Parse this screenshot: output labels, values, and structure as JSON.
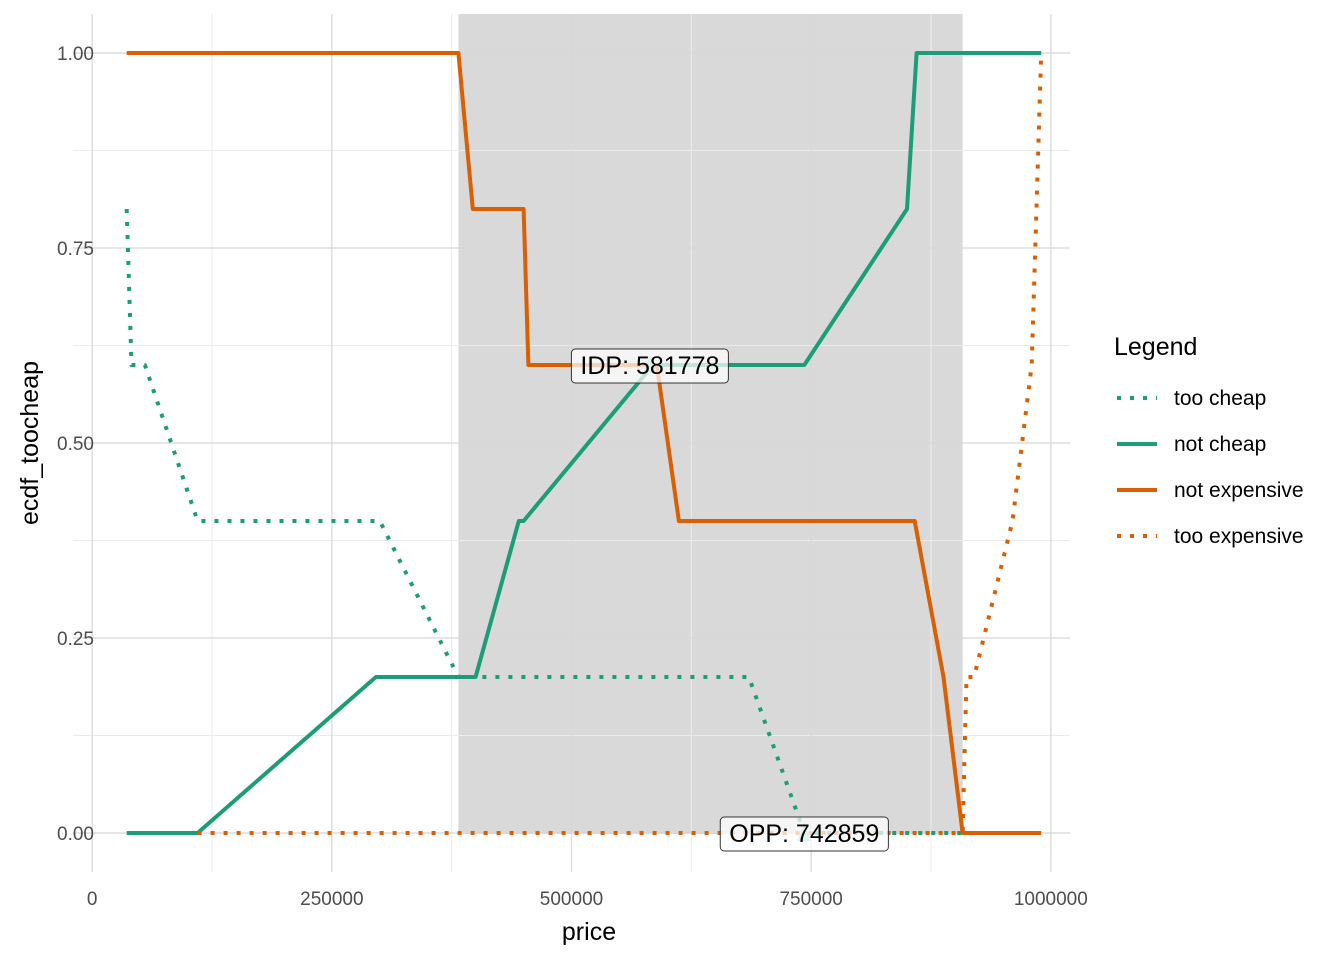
{
  "chart_data": {
    "type": "line",
    "title": "",
    "xlabel": "price",
    "ylabel": "ecdf_toocheap",
    "xlim": [
      -20000,
      1020000
    ],
    "ylim": [
      -0.05,
      1.05
    ],
    "x_ticks": [
      0,
      250000,
      500000,
      750000,
      1000000
    ],
    "x_tick_labels": [
      "0",
      "250000",
      "500000",
      "750000",
      "1000000"
    ],
    "y_ticks": [
      0,
      0.25,
      0.5,
      0.75,
      1.0
    ],
    "y_tick_labels": [
      "0.00",
      "0.25",
      "0.50",
      "0.75",
      "1.00"
    ],
    "grid": true,
    "legend_title": "Legend",
    "legend_position": "right",
    "shaded_range": {
      "from": 382000,
      "to": 908000,
      "color": "#d9d9d9"
    },
    "series": [
      {
        "name": "too cheap",
        "color": "#1b9e77",
        "dashed": true,
        "x": [
          36000,
          41000,
          55000,
          110000,
          296000,
          300000,
          382000,
          400000,
          450000,
          455000,
          515000,
          575000,
          612000,
          618000,
          685000,
          742859,
          895000,
          912000,
          990000
        ],
        "y": [
          0.8,
          0.6,
          0.6,
          0.4,
          0.4,
          0.4,
          0.2,
          0.2,
          0.2,
          0.2,
          0.2,
          0.2,
          0.2,
          0.2,
          0.2,
          0,
          0,
          0,
          0
        ]
      },
      {
        "name": "not cheap",
        "color": "#1b9e77",
        "dashed": false,
        "x": [
          36000,
          110000,
          296000,
          300000,
          400000,
          445000,
          450000,
          585000,
          742859,
          850000,
          860000,
          990000
        ],
        "y": [
          0,
          0,
          0.2,
          0.2,
          0.2,
          0.4,
          0.4,
          0.6,
          0.6,
          0.8,
          1.0,
          1.0
        ]
      },
      {
        "name": "not expensive",
        "color": "#d95f02",
        "dashed": false,
        "x": [
          36000,
          382000,
          397000,
          445000,
          450000,
          455000,
          581778,
          589000,
          612000,
          858000,
          888000,
          908000,
          990000
        ],
        "y": [
          1.0,
          1.0,
          0.8,
          0.8,
          0.8,
          0.6,
          0.6,
          0.6,
          0.4,
          0.4,
          0.2,
          0,
          0
        ]
      },
      {
        "name": "too expensive",
        "color": "#d95f02",
        "dashed": true,
        "x": [
          110000,
          905000,
          908000,
          912000,
          920000,
          960000,
          980000,
          990000
        ],
        "y": [
          0,
          0,
          0,
          0.2,
          0.2,
          0.4,
          0.6,
          1.0
        ]
      }
    ],
    "annotations": [
      {
        "label": "IDP:  581778",
        "x": 581778,
        "y": 0.6
      },
      {
        "label": "OPP:  742859",
        "x": 742859,
        "y": 0
      }
    ]
  }
}
